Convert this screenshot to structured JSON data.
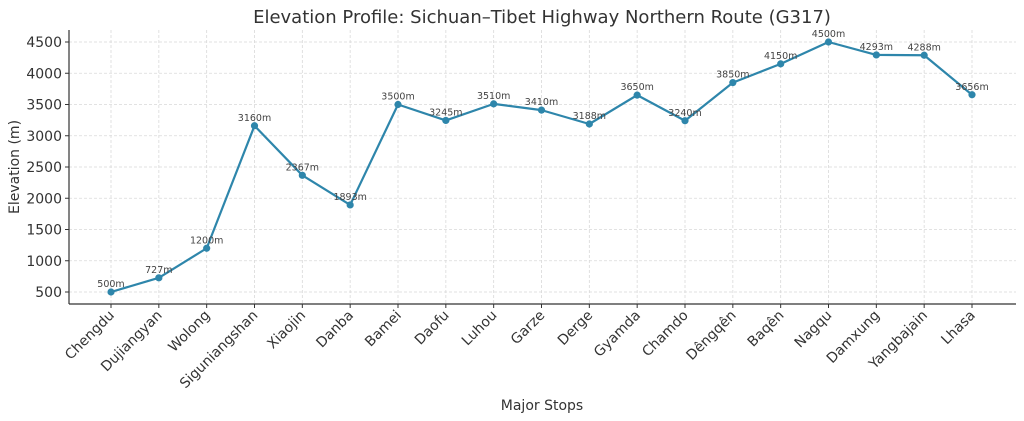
{
  "chart_data": {
    "type": "line",
    "title": "Elevation Profile: Sichuan–Tibet Highway Northern Route (G317)",
    "xlabel": "Major Stops",
    "ylabel": "Elevation (m)",
    "categories": [
      "Chengdu",
      "Dujiangyan",
      "Wolong",
      "Siguniangshan",
      "Xiaojin",
      "Danba",
      "Bamei",
      "Daofu",
      "Luhou",
      "Garze",
      "Derge",
      "Gyamda",
      "Chamdo",
      "Dêngqên",
      "Baqên",
      "Nagqu",
      "Damxung",
      "Yangbajain",
      "Lhasa"
    ],
    "series": [
      {
        "name": "Elevation",
        "color": "#2e86ab",
        "values": [
          500,
          727,
          1200,
          3160,
          2367,
          1893,
          3500,
          3245,
          3510,
          3410,
          3188,
          3650,
          3240,
          3850,
          4150,
          4500,
          4293,
          4288,
          3656
        ],
        "data_labels": [
          "500m",
          "727m",
          "1200m",
          "3160m",
          "2367m",
          "1893m",
          "3500m",
          "3245m",
          "3510m",
          "3410m",
          "3188m",
          "3650m",
          "3240m",
          "3850m",
          "4150m",
          "4500m",
          "4293m",
          "4288m",
          "3656m"
        ]
      }
    ],
    "yticks": [
      500,
      1000,
      1500,
      2000,
      2500,
      3000,
      3500,
      4000,
      4500
    ],
    "ylim": [
      308,
      4692
    ],
    "grid": true,
    "legend": "none"
  }
}
